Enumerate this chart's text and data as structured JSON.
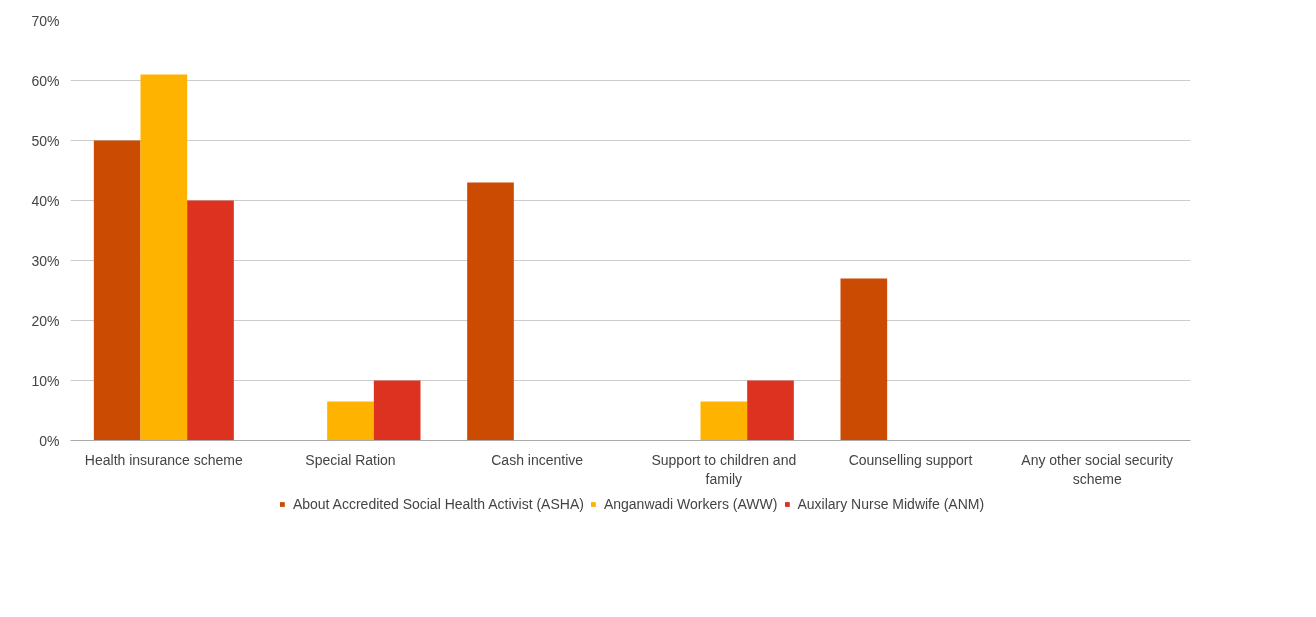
{
  "chart_data": {
    "type": "bar",
    "categories": [
      "Health insurance scheme",
      "Special Ration",
      "Cash incentive",
      "Support to children and family",
      "Counselling support",
      "Any other social security scheme"
    ],
    "series": [
      {
        "name": "About Accredited Social Health Activist (ASHA)",
        "color": "#cc4b02",
        "values": [
          50,
          0,
          43,
          0,
          27,
          0
        ]
      },
      {
        "name": "Anganwadi Workers (AWW)",
        "color": "#fdb300",
        "values": [
          61,
          6.5,
          0,
          6.5,
          0,
          0
        ]
      },
      {
        "name": "Auxilary Nurse Midwife (ANM)",
        "color": "#de3220",
        "values": [
          40,
          10,
          0,
          10,
          0,
          0
        ]
      }
    ],
    "ylim": [
      0,
      70
    ],
    "yticks": [
      {
        "value": 0,
        "label": "0%"
      },
      {
        "value": 10,
        "label": "10%"
      },
      {
        "value": 20,
        "label": "20%"
      },
      {
        "value": 30,
        "label": "30%"
      },
      {
        "value": 40,
        "label": "40%"
      },
      {
        "value": 50,
        "label": "50%"
      },
      {
        "value": 60,
        "label": "60%"
      },
      {
        "value": 70,
        "label": "70%"
      }
    ],
    "grid": "y",
    "legend": "bottom"
  }
}
